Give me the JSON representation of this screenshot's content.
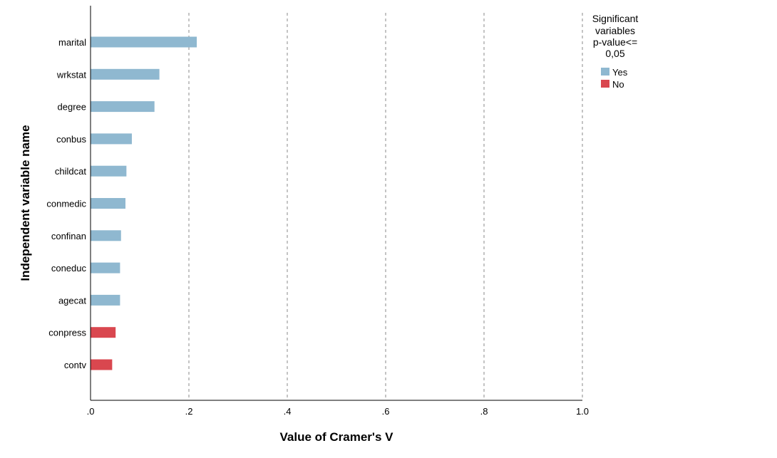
{
  "chart_data": {
    "type": "bar",
    "orientation": "horizontal",
    "xlabel": "Value of Cramer's V",
    "ylabel": "Independent variable name",
    "xlim": [
      0,
      1.0
    ],
    "x_ticks": [
      ".0",
      ".2",
      ".4",
      ".6",
      ".8",
      "1.0"
    ],
    "x_tick_values": [
      0,
      0.2,
      0.4,
      0.6,
      0.8,
      1.0
    ],
    "grid": "vertical dashed",
    "categories": [
      "marital",
      "wrkstat",
      "degree",
      "conbus",
      "childcat",
      "conmedic",
      "confinan",
      "coneduc",
      "agecat",
      "conpress",
      "contv"
    ],
    "values": [
      0.216,
      0.14,
      0.13,
      0.084,
      0.073,
      0.071,
      0.062,
      0.06,
      0.06,
      0.051,
      0.044
    ],
    "significant": [
      "Yes",
      "Yes",
      "Yes",
      "Yes",
      "Yes",
      "Yes",
      "Yes",
      "Yes",
      "Yes",
      "No",
      "No"
    ],
    "legend": {
      "placement": "top-right",
      "title_lines": [
        "Significant",
        "variables",
        "p-value<=",
        "0,05"
      ],
      "entries": [
        {
          "label": "Yes",
          "color": "#8FB8D0"
        },
        {
          "label": "No",
          "color": "#D9474F"
        }
      ]
    }
  }
}
